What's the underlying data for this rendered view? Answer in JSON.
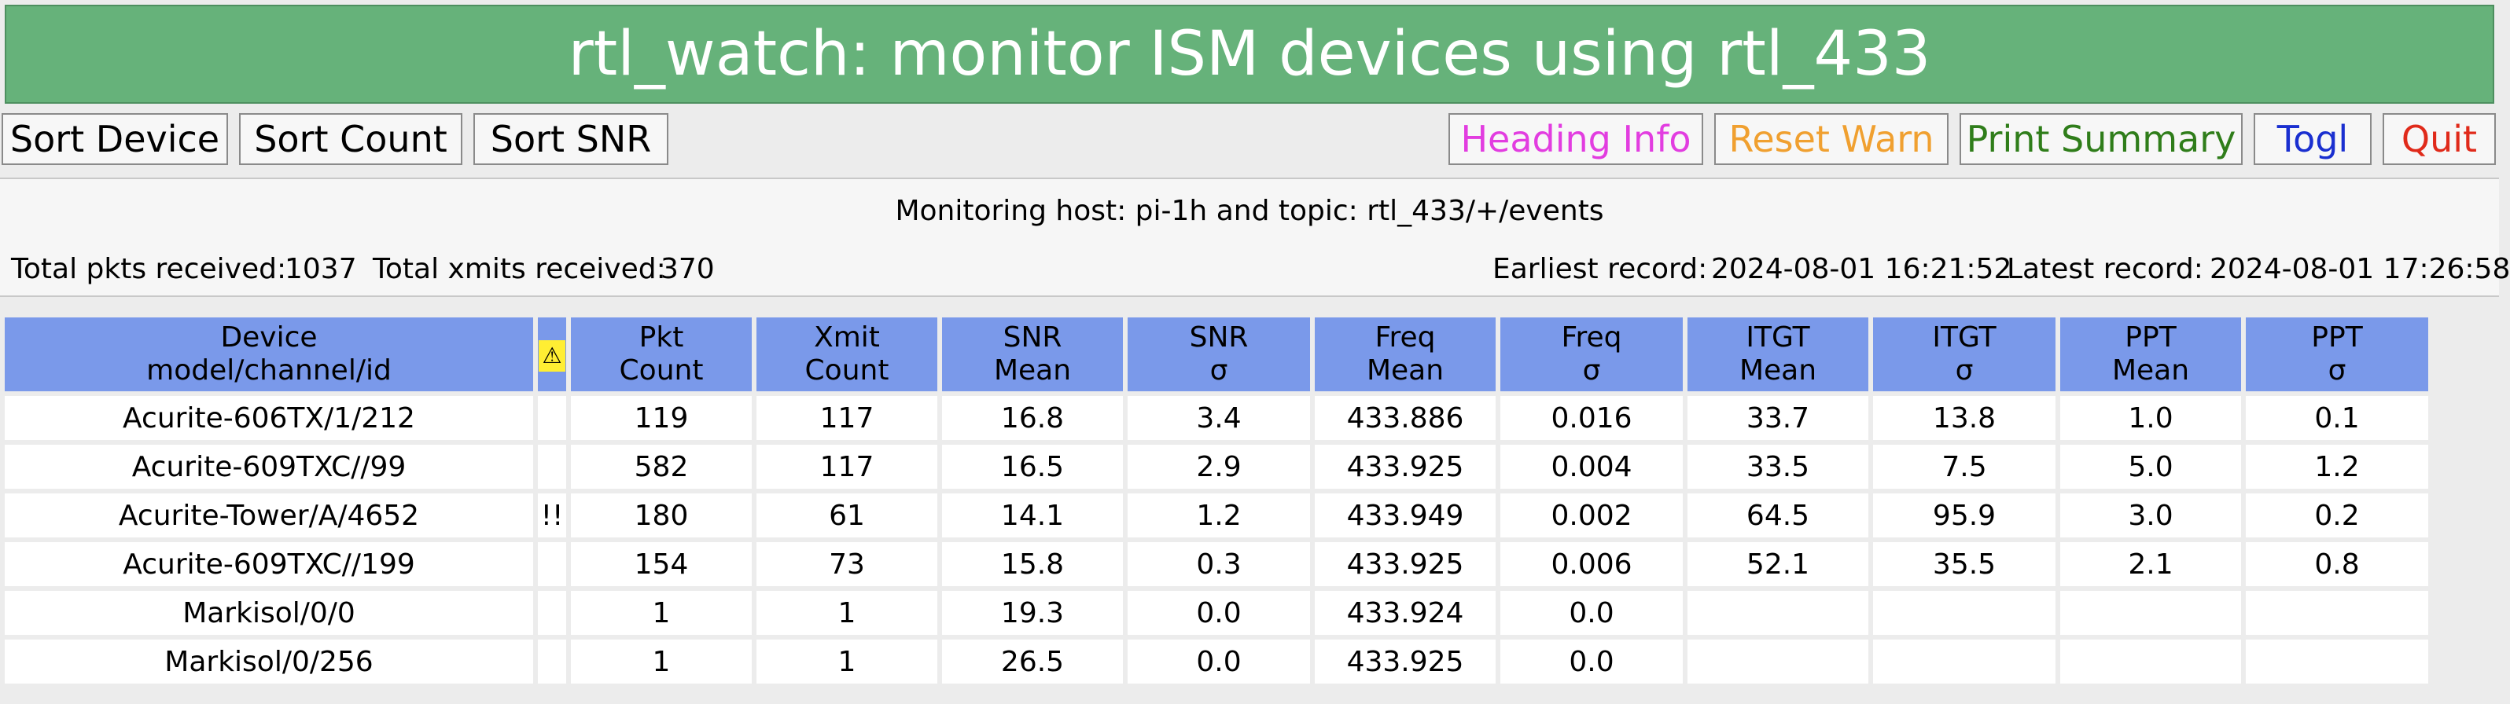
{
  "app": {
    "title": "rtl_watch: monitor ISM devices using rtl_433"
  },
  "toolbar": {
    "left_buttons": [
      "Sort Device",
      "Sort Count",
      "Sort SNR"
    ],
    "right_buttons": [
      {
        "label": "Heading Info",
        "color": "#e23de0"
      },
      {
        "label": "Reset Warn",
        "color": "#f0a030"
      },
      {
        "label": "Print Summary",
        "color": "#2f7d1a"
      },
      {
        "label": "Togl",
        "color": "#1a2fd0"
      },
      {
        "label": "Quit",
        "color": "#e02a1a"
      }
    ]
  },
  "info": {
    "monitoring": "Monitoring host: pi-1h and topic: rtl_433/+/events",
    "total_pkts_label": "Total pkts received:",
    "total_pkts_value": "1037",
    "total_xmits_label": "Total xmits received:",
    "total_xmits_value": "370",
    "earliest_label": "Earliest record:",
    "earliest_value": "2024-08-01 16:21:52",
    "latest_label": "Latest record:",
    "latest_value": "2024-08-01 17:26:58"
  },
  "table": {
    "headers": [
      {
        "line1": "Device",
        "line2": "model/channel/id"
      },
      {
        "line1": "⚠",
        "line2": ""
      },
      {
        "line1": "Pkt",
        "line2": "Count"
      },
      {
        "line1": "Xmit",
        "line2": "Count"
      },
      {
        "line1": "SNR",
        "line2": "Mean"
      },
      {
        "line1": "SNR",
        "line2": "σ"
      },
      {
        "line1": "Freq",
        "line2": "Mean"
      },
      {
        "line1": "Freq",
        "line2": "σ"
      },
      {
        "line1": "ITGT",
        "line2": "Mean"
      },
      {
        "line1": "ITGT",
        "line2": "σ"
      },
      {
        "line1": "PPT",
        "line2": "Mean"
      },
      {
        "line1": "PPT",
        "line2": "σ"
      }
    ],
    "rows": [
      [
        "Acurite-606TX/1/212",
        "",
        "119",
        "117",
        "16.8",
        "3.4",
        "433.886",
        "0.016",
        "33.7",
        "13.8",
        "1.0",
        "0.1"
      ],
      [
        "Acurite-609TXC//99",
        "",
        "582",
        "117",
        "16.5",
        "2.9",
        "433.925",
        "0.004",
        "33.5",
        "7.5",
        "5.0",
        "1.2"
      ],
      [
        "Acurite-Tower/A/4652",
        "!!",
        "180",
        "61",
        "14.1",
        "1.2",
        "433.949",
        "0.002",
        "64.5",
        "95.9",
        "3.0",
        "0.2"
      ],
      [
        "Acurite-609TXC//199",
        "",
        "154",
        "73",
        "15.8",
        "0.3",
        "433.925",
        "0.006",
        "52.1",
        "35.5",
        "2.1",
        "0.8"
      ],
      [
        "Markisol/0/0",
        "",
        "1",
        "1",
        "19.3",
        "0.0",
        "433.924",
        "0.0",
        "",
        "",
        "",
        ""
      ],
      [
        "Markisol/0/256",
        "",
        "1",
        "1",
        "26.5",
        "0.0",
        "433.925",
        "0.0",
        "",
        "",
        "",
        ""
      ]
    ]
  }
}
